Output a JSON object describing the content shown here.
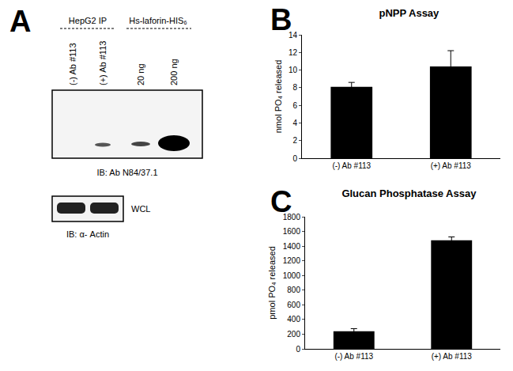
{
  "panel_labels": [
    "A",
    "B",
    "C"
  ],
  "blot": {
    "group_labels": [
      "HepG2 IP",
      "Hs-laforin-HIS₆"
    ],
    "lanes": [
      "(-) Ab #113",
      "(+) Ab #113",
      "20 ng",
      "200 ng"
    ],
    "blot_label": "IB: Ab N84/37.1",
    "control_label": "WCL",
    "control_blot_label": "IB: α- Actin"
  },
  "chart_data": [
    {
      "type": "bar",
      "title": "pNPP Assay",
      "y_label": "nmol PO₄ released",
      "categories": [
        "(-) Ab #113",
        "(+) Ab #113"
      ],
      "values": [
        8.1,
        10.4
      ],
      "errors": [
        0.5,
        1.8
      ],
      "color": "#000000",
      "ylim": [
        0,
        14
      ],
      "yticks": [
        0,
        2,
        4,
        6,
        8,
        10,
        12,
        14
      ],
      "grid": false
    },
    {
      "type": "bar",
      "title": "Glucan Phosphatase Assay",
      "y_label": "pmol PO₄ released",
      "categories": [
        "(-) Ab #113",
        "(+) Ab #113"
      ],
      "values": [
        240,
        1480
      ],
      "errors": [
        35,
        45
      ],
      "color": "#000000",
      "ylim": [
        0,
        1800
      ],
      "yticks": [
        0,
        200,
        400,
        600,
        800,
        1000,
        1200,
        1400,
        1600,
        1800
      ],
      "grid": false
    }
  ]
}
